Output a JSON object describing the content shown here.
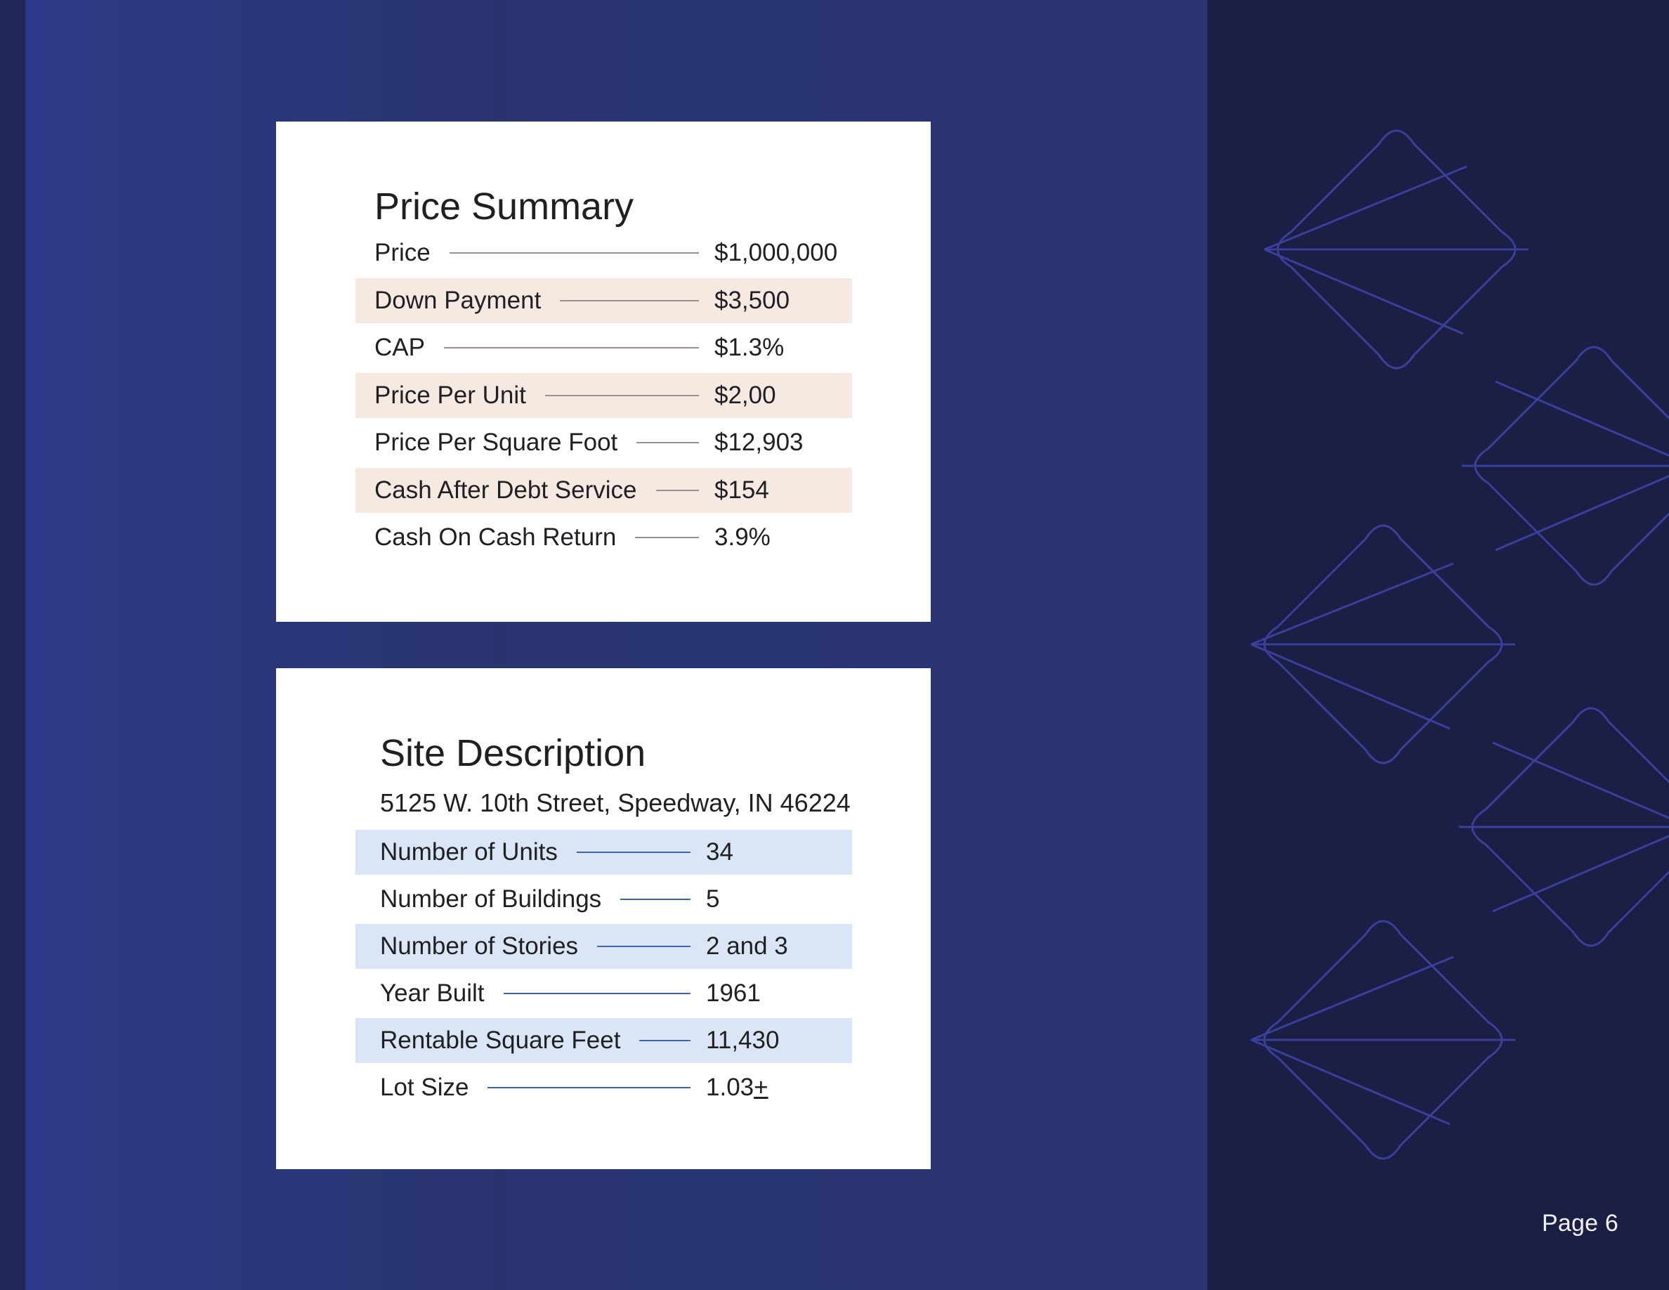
{
  "price_summary": {
    "title": "Price Summary",
    "rows": [
      {
        "label": "Price",
        "value": "$1,000,000"
      },
      {
        "label": "Down Payment",
        "value": "$3,500"
      },
      {
        "label": "CAP",
        "value": "$1.3%"
      },
      {
        "label": "Price Per Unit",
        "value": "$2,00"
      },
      {
        "label": "Price Per Square Foot",
        "value": "$12,903"
      },
      {
        "label": "Cash After Debt Service",
        "value": "$154"
      },
      {
        "label": "Cash On Cash Return",
        "value": "3.9%"
      }
    ]
  },
  "site_description": {
    "title": "Site Description",
    "address": "5125 W. 10th Street, Speedway, IN 46224",
    "rows": [
      {
        "label": "Number of Units",
        "value": "34"
      },
      {
        "label": "Number of Buildings",
        "value": "5"
      },
      {
        "label": "Number of Stories",
        "value": "2 and 3"
      },
      {
        "label": "Year Built",
        "value": "1961"
      },
      {
        "label": "Rentable Square Feet",
        "value": "11,430"
      },
      {
        "label": "Lot Size",
        "value": "1.03",
        "value_suffix": "+"
      }
    ]
  },
  "footer": {
    "page_label": "Page 6"
  },
  "colors": {
    "main_panel": "#2a3576",
    "right_panel": "#1b1e45",
    "pattern_stroke": "#3a3f9a",
    "price_row_shade": "#f6e9e2",
    "site_row_shade": "#dae6f5",
    "price_leader": "#9a8f95",
    "site_leader": "#3f62b2"
  },
  "decoration": {
    "pattern_icon": "diamond-fan-icon"
  }
}
